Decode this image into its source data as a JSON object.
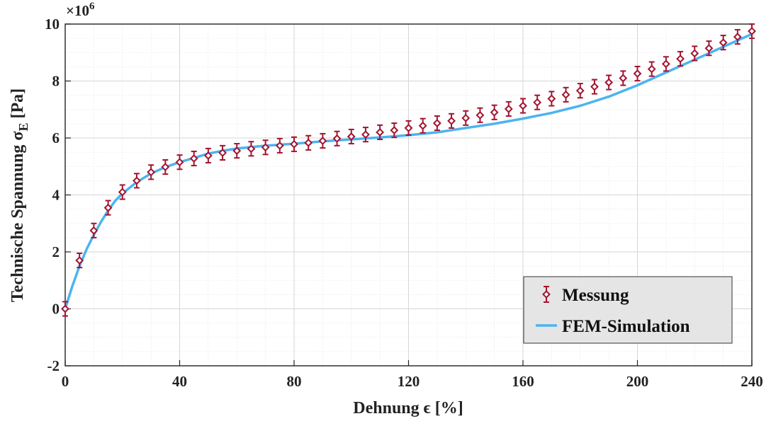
{
  "chart_data": {
    "type": "line",
    "xlabel": "Dehnung ϵ [%]",
    "ylabel": "Technische Spannung σ",
    "ylabel_subscript": "E",
    "ylabel_unit": "[Pa]",
    "y_multiplier_base": "×10",
    "y_multiplier_exp": "6",
    "xlim": [
      0,
      240
    ],
    "ylim": [
      -2,
      10
    ],
    "x_ticks": [
      0,
      40,
      80,
      120,
      160,
      200,
      240
    ],
    "y_ticks": [
      -2,
      0,
      2,
      4,
      6,
      8,
      10
    ],
    "grid": true,
    "minor_grid": true,
    "legend_position": "bottom-right",
    "series": [
      {
        "name": "Messung",
        "kind": "errorbar",
        "marker": "diamond",
        "color": "#A2142F",
        "x": [
          0,
          5,
          10,
          15,
          20,
          25,
          30,
          35,
          40,
          45,
          50,
          55,
          60,
          65,
          70,
          75,
          80,
          85,
          90,
          95,
          100,
          105,
          110,
          115,
          120,
          125,
          130,
          135,
          140,
          145,
          150,
          155,
          160,
          165,
          170,
          175,
          180,
          185,
          190,
          195,
          200,
          205,
          210,
          215,
          220,
          225,
          230,
          235,
          240
        ],
        "y": [
          0,
          1.7,
          2.75,
          3.55,
          4.1,
          4.5,
          4.8,
          4.98,
          5.15,
          5.28,
          5.38,
          5.48,
          5.55,
          5.62,
          5.67,
          5.73,
          5.78,
          5.83,
          5.9,
          5.98,
          6.05,
          6.12,
          6.2,
          6.27,
          6.35,
          6.43,
          6.52,
          6.6,
          6.7,
          6.8,
          6.9,
          7.02,
          7.13,
          7.25,
          7.38,
          7.52,
          7.66,
          7.8,
          7.95,
          8.1,
          8.26,
          8.42,
          8.6,
          8.78,
          8.97,
          9.15,
          9.35,
          9.55,
          9.75
        ],
        "error": 0.25
      },
      {
        "name": "FEM-Simulation",
        "kind": "line",
        "color": "#4DB3F0",
        "x": [
          0,
          2.5,
          5,
          7.5,
          10,
          12.5,
          15,
          17.5,
          20,
          25,
          30,
          35,
          40,
          45,
          50,
          55,
          60,
          70,
          80,
          90,
          100,
          110,
          120,
          130,
          140,
          150,
          160,
          170,
          180,
          190,
          200,
          210,
          220,
          230,
          240
        ],
        "y": [
          0,
          0.8,
          1.5,
          2.1,
          2.6,
          3.05,
          3.45,
          3.8,
          4.05,
          4.45,
          4.75,
          4.98,
          5.15,
          5.3,
          5.45,
          5.55,
          5.63,
          5.73,
          5.8,
          5.88,
          5.95,
          6.02,
          6.1,
          6.2,
          6.35,
          6.5,
          6.68,
          6.88,
          7.13,
          7.45,
          7.85,
          8.3,
          8.75,
          9.2,
          9.65
        ]
      }
    ]
  }
}
